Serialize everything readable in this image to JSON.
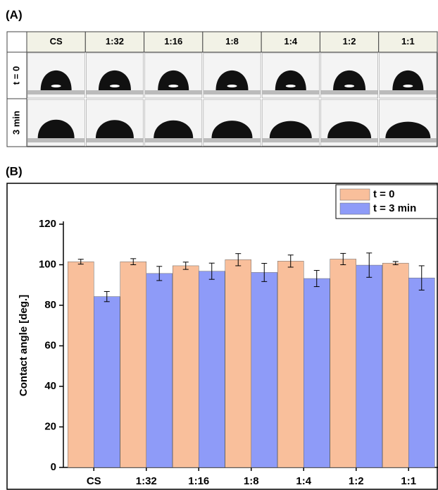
{
  "panel_a": {
    "label": "(A)",
    "columns": [
      "CS",
      "1:32",
      "1:16",
      "1:8",
      "1:4",
      "1:2",
      "1:1"
    ],
    "rows": [
      "t = 0",
      "3 min"
    ]
  },
  "panel_b": {
    "label": "(B)"
  },
  "chart_data": {
    "type": "bar",
    "ylabel": "Contact angle [deg.]",
    "categories": [
      "CS",
      "1:32",
      "1:16",
      "1:8",
      "1:4",
      "1:2",
      "1:1"
    ],
    "series": [
      {
        "name": "t = 0",
        "color": "#f9bf9b",
        "values": [
          101.5,
          101.5,
          99.5,
          102.5,
          101.8,
          102.8,
          100.8
        ],
        "errors": [
          1.2,
          1.5,
          1.8,
          3,
          3,
          2.8,
          0.8
        ]
      },
      {
        "name": "t = 3 min",
        "color": "#8e9bf8",
        "values": [
          84.3,
          95.7,
          96.8,
          96.2,
          93.2,
          99.8,
          93.5
        ],
        "errors": [
          2.5,
          3.5,
          4,
          4.5,
          4,
          6,
          6
        ]
      }
    ],
    "ylim": [
      0,
      120
    ],
    "yticks": [
      0,
      20,
      40,
      60,
      80,
      100,
      120
    ],
    "legend": "top-right"
  }
}
